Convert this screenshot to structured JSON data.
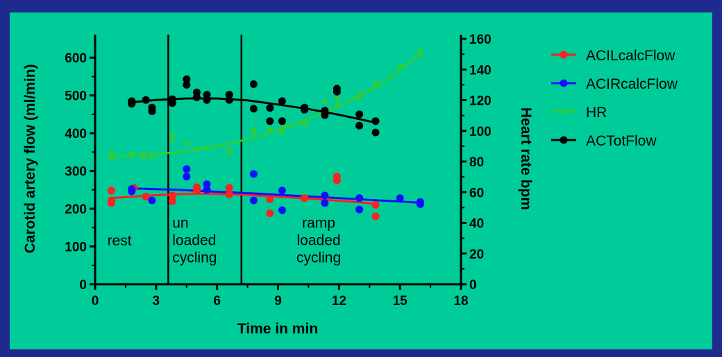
{
  "chart_data": {
    "type": "scatter",
    "xlabel": "Time in min",
    "ylabel": "Carotid artery flow (ml/min)",
    "y2label": "Heart rate bpm",
    "xlim": [
      0,
      18
    ],
    "ylim": [
      0,
      650
    ],
    "y2lim": [
      0,
      160
    ],
    "xticks": [
      0,
      3,
      6,
      9,
      12,
      15,
      18
    ],
    "yticks": [
      0,
      100,
      200,
      300,
      400,
      500,
      600
    ],
    "y2ticks": [
      0,
      20,
      40,
      60,
      80,
      100,
      120,
      140,
      160
    ],
    "grid": false,
    "legend_position": "right",
    "phase_lines_x": [
      3.6,
      7.2
    ],
    "annotations": [
      {
        "lines": [
          "rest"
        ],
        "x": 0.6,
        "y": 103
      },
      {
        "lines": [
          "un",
          "loaded",
          "cycling"
        ],
        "x": 3.8,
        "y": 150
      },
      {
        "lines": [
          "ramp",
          "loaded",
          "cycling"
        ],
        "x": 11,
        "y": 150
      }
    ],
    "series": [
      {
        "name": "ACILcalcFlow",
        "color": "#ff2020",
        "axis": "left",
        "marker_size": "large",
        "points": [
          [
            0.8,
            248
          ],
          [
            0.8,
            222
          ],
          [
            0.8,
            215
          ],
          [
            1.9,
            255
          ],
          [
            2.5,
            232
          ],
          [
            3.8,
            235
          ],
          [
            3.8,
            220
          ],
          [
            5.0,
            257
          ],
          [
            5.0,
            248
          ],
          [
            6.6,
            255
          ],
          [
            6.6,
            238
          ],
          [
            8.6,
            225
          ],
          [
            8.6,
            188
          ],
          [
            10.3,
            228
          ],
          [
            11.3,
            228
          ],
          [
            11.9,
            285
          ],
          [
            11.9,
            275
          ],
          [
            13.0,
            228
          ],
          [
            13.8,
            210
          ],
          [
            13.8,
            180
          ]
        ],
        "trend": [
          [
            0.8,
            228
          ],
          [
            3,
            236
          ],
          [
            5,
            240
          ],
          [
            7,
            238
          ],
          [
            9,
            232
          ],
          [
            11,
            225
          ],
          [
            13,
            217
          ],
          [
            13.8,
            213
          ]
        ]
      },
      {
        "name": "ACIRcalcFlow",
        "color": "#1010ff",
        "axis": "left",
        "marker_size": "large",
        "points": [
          [
            1.8,
            252
          ],
          [
            1.8,
            246
          ],
          [
            2.8,
            222
          ],
          [
            4.5,
            305
          ],
          [
            4.5,
            285
          ],
          [
            5.5,
            265
          ],
          [
            5.5,
            250
          ],
          [
            7.8,
            292
          ],
          [
            7.8,
            222
          ],
          [
            9.2,
            248
          ],
          [
            9.2,
            196
          ],
          [
            11.3,
            235
          ],
          [
            11.3,
            215
          ],
          [
            13.0,
            228
          ],
          [
            13.0,
            198
          ],
          [
            15.0,
            228
          ],
          [
            16.0,
            218
          ],
          [
            16.0,
            212
          ]
        ],
        "trend": [
          [
            1.8,
            254
          ],
          [
            4,
            250
          ],
          [
            6,
            245
          ],
          [
            8,
            240
          ],
          [
            10,
            234
          ],
          [
            12,
            228
          ],
          [
            14,
            222
          ],
          [
            16,
            216
          ]
        ]
      },
      {
        "name": "HR",
        "color": "#33cc33",
        "axis": "right",
        "marker_size": "small",
        "points": [
          [
            0.8,
            86
          ],
          [
            0.8,
            84
          ],
          [
            0.8,
            82
          ],
          [
            1.8,
            85
          ],
          [
            1.8,
            84
          ],
          [
            2.4,
            85
          ],
          [
            2.4,
            82
          ],
          [
            2.8,
            84
          ],
          [
            2.8,
            83
          ],
          [
            3.8,
            97
          ],
          [
            3.8,
            94
          ],
          [
            4.5,
            92
          ],
          [
            5.0,
            88
          ],
          [
            5.5,
            89
          ],
          [
            6.6,
            88
          ],
          [
            6.6,
            85
          ],
          [
            7.8,
            101
          ],
          [
            7.8,
            99
          ],
          [
            8.6,
            101
          ],
          [
            9.2,
            102
          ],
          [
            9.2,
            99
          ],
          [
            10.3,
            106
          ],
          [
            10.3,
            104
          ],
          [
            11.3,
            119
          ],
          [
            11.3,
            114
          ],
          [
            11.9,
            121
          ],
          [
            11.9,
            117
          ],
          [
            13.0,
            124
          ],
          [
            13.0,
            121
          ],
          [
            13.8,
            131
          ],
          [
            13.8,
            129
          ],
          [
            15.0,
            142
          ],
          [
            16.0,
            152
          ],
          [
            16.0,
            150
          ]
        ],
        "trend": [
          [
            0.8,
            83
          ],
          [
            2,
            84
          ],
          [
            4,
            86
          ],
          [
            6,
            90
          ],
          [
            8,
            96
          ],
          [
            10,
            105
          ],
          [
            12,
            116
          ],
          [
            14,
            130
          ],
          [
            16,
            150
          ]
        ]
      },
      {
        "name": "ACTotFlow",
        "color": "#000000",
        "axis": "left",
        "marker_size": "large",
        "points": [
          [
            1.8,
            485
          ],
          [
            1.8,
            478
          ],
          [
            2.5,
            488
          ],
          [
            2.8,
            468
          ],
          [
            2.8,
            458
          ],
          [
            3.8,
            490
          ],
          [
            3.8,
            480
          ],
          [
            4.5,
            543
          ],
          [
            4.5,
            528
          ],
          [
            5.0,
            508
          ],
          [
            5.0,
            495
          ],
          [
            5.5,
            502
          ],
          [
            5.5,
            488
          ],
          [
            6.6,
            502
          ],
          [
            6.6,
            488
          ],
          [
            7.8,
            530
          ],
          [
            7.8,
            465
          ],
          [
            8.6,
            467
          ],
          [
            8.6,
            432
          ],
          [
            9.2,
            485
          ],
          [
            9.2,
            432
          ],
          [
            10.3,
            468
          ],
          [
            10.3,
            462
          ],
          [
            11.3,
            460
          ],
          [
            11.3,
            448
          ],
          [
            11.9,
            518
          ],
          [
            11.9,
            510
          ],
          [
            13.0,
            450
          ],
          [
            13.0,
            420
          ],
          [
            13.8,
            432
          ],
          [
            13.8,
            402
          ]
        ],
        "trend": [
          [
            1.8,
            482
          ],
          [
            3,
            488
          ],
          [
            4.5,
            492
          ],
          [
            6,
            492
          ],
          [
            7.5,
            487
          ],
          [
            9,
            476
          ],
          [
            10.5,
            464
          ],
          [
            12,
            449
          ],
          [
            13.8,
            428
          ]
        ]
      }
    ]
  }
}
